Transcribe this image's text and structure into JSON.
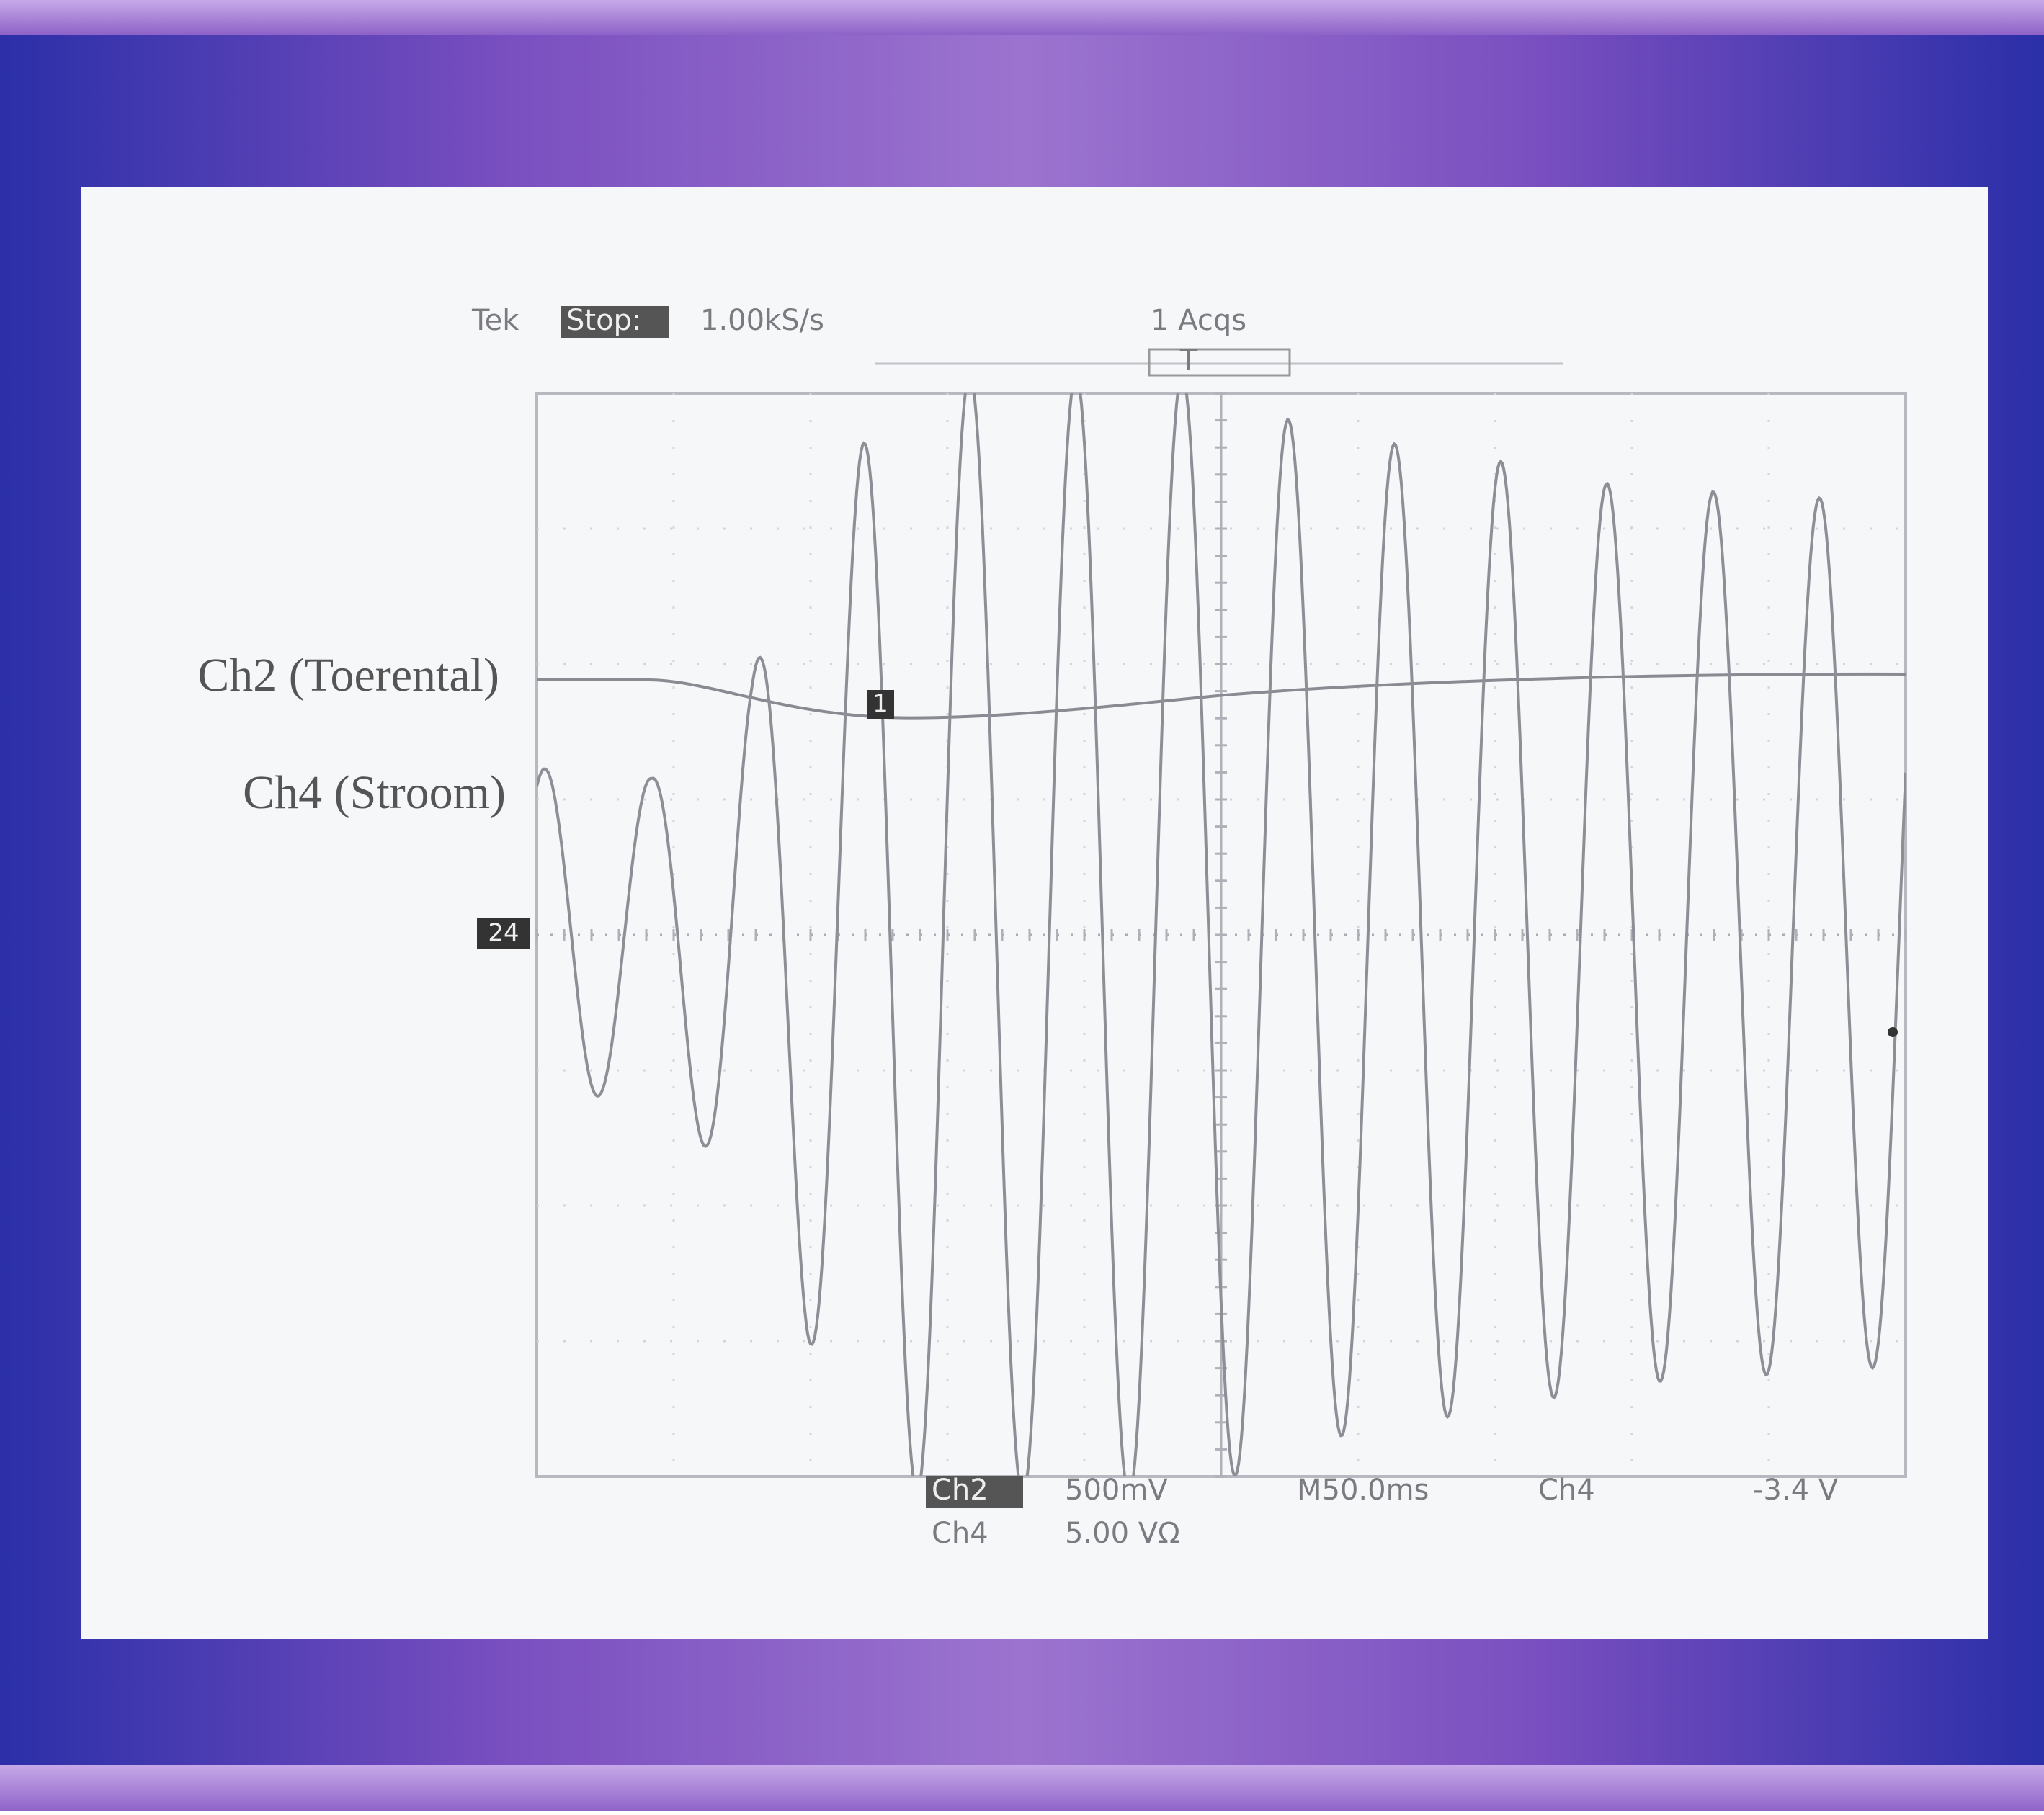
{
  "header": {
    "brand": "Tek",
    "status": "Stop:",
    "sample_rate": "1.00kS/s",
    "acquisitions": "1 Acqs",
    "trigger_marker": "T"
  },
  "labels": {
    "ch2": "Ch2 (Toerental)",
    "ch4": "Ch4 (Stroom)"
  },
  "markers": {
    "ch1": "1",
    "ground": "24"
  },
  "footer": {
    "row1": [
      "Ch2",
      "500mV",
      "M50.0ms",
      "Ch4",
      "-3.4 V"
    ],
    "row2": [
      "Ch4",
      "5.00 VΩ"
    ]
  }
}
